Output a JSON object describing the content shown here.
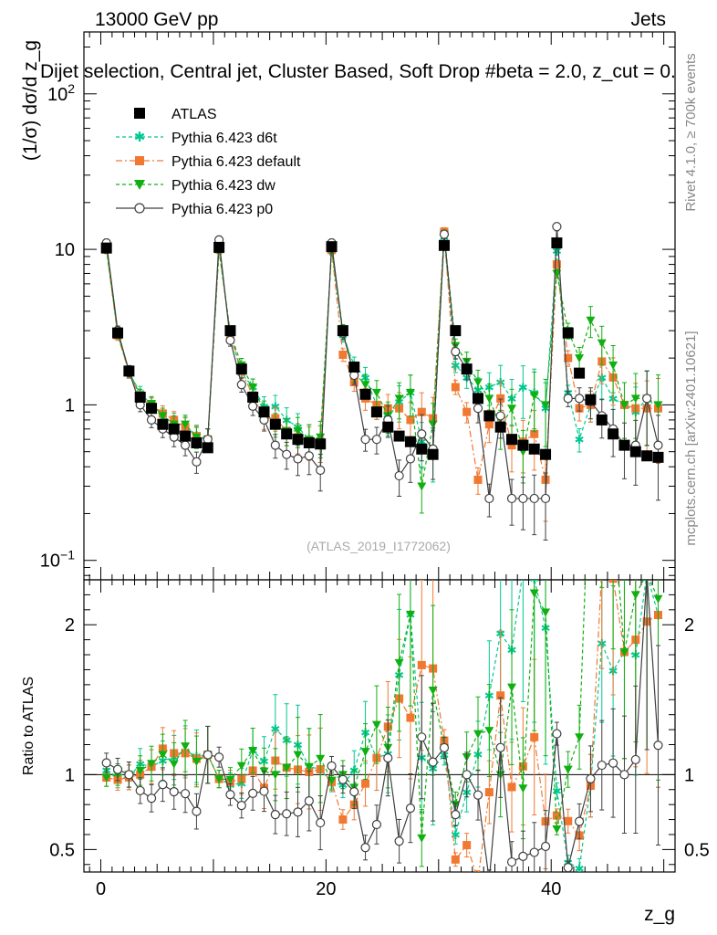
{
  "header": {
    "left": "13000 GeV pp",
    "right": "Jets",
    "selection": "Dijet selection, Central jet, Cluster Based, Soft Drop #beta = 2.0, z_cut = 0.",
    "watermark": "(ATLAS_2019_I1772062)",
    "side_label_top": "Rivet 4.1.0, ≥ 700k events",
    "side_label_bottom": "mcplots.cern.ch [arXiv:2401.10621]"
  },
  "chart_data": {
    "type": "line",
    "xlabel": "z_g",
    "ylabel": "(1/σ) dσ/d z_g",
    "ratio_ylabel": "Ratio to ATLAS",
    "xlim": [
      -1.5,
      51
    ],
    "ylim_log": [
      0.075,
      250
    ],
    "ratio_ylim": [
      0.35,
      2.3
    ],
    "x_ticks": [
      "0",
      "20",
      "40"
    ],
    "y_ticks": [
      "10^-1",
      "1",
      "10",
      "10^2"
    ],
    "ratio_ticks": [
      "0.5",
      "1",
      "2"
    ],
    "legend": [
      "ATLAS",
      "Pythia 6.423 d6t",
      "Pythia 6.423 default",
      "Pythia 6.423 dw",
      "Pythia 6.423 p0"
    ],
    "series": [
      {
        "name": "ATLAS",
        "color": "#000000",
        "marker": "square",
        "x": [
          0.5,
          1.5,
          2.5,
          3.5,
          4.5,
          5.5,
          6.5,
          7.5,
          8.5,
          9.5,
          10.5,
          11.5,
          12.5,
          13.5,
          14.5,
          15.5,
          16.5,
          17.5,
          18.5,
          19.5,
          20.5,
          21.5,
          22.5,
          23.5,
          24.5,
          25.5,
          26.5,
          27.5,
          28.5,
          29.5,
          30.5,
          31.5,
          32.5,
          33.5,
          34.5,
          35.5,
          36.5,
          37.5,
          38.5,
          39.5,
          40.5,
          41.5,
          42.5,
          43.5,
          44.5,
          45.5,
          46.5,
          47.5,
          48.5,
          49.5
        ],
        "values": [
          10.2,
          2.9,
          1.65,
          1.12,
          0.95,
          0.75,
          0.7,
          0.63,
          0.57,
          0.53,
          10.3,
          3.0,
          1.7,
          1.12,
          0.9,
          0.75,
          0.65,
          0.6,
          0.57,
          0.56,
          10.4,
          3.0,
          1.75,
          1.17,
          0.9,
          0.72,
          0.63,
          0.58,
          0.52,
          0.48,
          10.6,
          3.0,
          1.7,
          1.1,
          0.85,
          0.72,
          0.6,
          0.55,
          0.52,
          0.48,
          11.0,
          2.9,
          1.6,
          1.08,
          0.8,
          0.65,
          0.55,
          0.5,
          0.47,
          0.46
        ]
      },
      {
        "name": "Pythia 6.423 d6t",
        "color": "#00c890",
        "marker": "star",
        "values": [
          10.5,
          2.85,
          1.62,
          1.2,
          1.0,
          0.82,
          0.78,
          0.73,
          0.64,
          0.6,
          10.0,
          2.8,
          1.6,
          1.3,
          0.98,
          0.98,
          0.8,
          0.72,
          0.6,
          0.58,
          9.8,
          2.8,
          1.8,
          1.5,
          1.0,
          0.82,
          1.05,
          1.2,
          0.58,
          0.5,
          12.0,
          1.8,
          1.5,
          1.25,
          1.3,
          1.4,
          1.1,
          1.3,
          1.2,
          0.95,
          9.8,
          1.2,
          0.6,
          1.0,
          1.5,
          1.1,
          1.0,
          0.9,
          1.1,
          0.95
        ]
      },
      {
        "name": "Pythia 6.423 default",
        "color": "#f07830",
        "marker": "square",
        "values": [
          10.0,
          2.8,
          1.62,
          1.12,
          1.0,
          0.88,
          0.8,
          0.72,
          0.63,
          0.6,
          10.0,
          2.85,
          1.65,
          1.15,
          0.82,
          0.82,
          0.68,
          0.62,
          0.58,
          0.58,
          9.9,
          2.1,
          1.4,
          1.1,
          1.0,
          0.95,
          0.95,
          0.8,
          0.9,
          0.82,
          13.0,
          1.3,
          0.9,
          0.33,
          0.75,
          1.1,
          0.55,
          0.58,
          0.65,
          0.33,
          8.0,
          2.0,
          0.95,
          1.0,
          1.9,
          1.5,
          1.0,
          0.95,
          0.95,
          0.95
        ]
      },
      {
        "name": "Pythia 6.423 dw",
        "color": "#10b010",
        "marker": "triangle",
        "values": [
          10.0,
          2.9,
          1.65,
          1.15,
          1.02,
          0.85,
          0.75,
          0.75,
          0.62,
          0.6,
          10.0,
          2.9,
          1.8,
          1.3,
          0.92,
          0.75,
          0.68,
          0.68,
          0.6,
          0.62,
          10.0,
          3.0,
          1.6,
          1.35,
          1.2,
          0.85,
          1.1,
          1.2,
          0.3,
          0.75,
          12.5,
          2.4,
          1.9,
          1.4,
          1.1,
          0.72,
          0.95,
          0.5,
          1.15,
          1.0,
          7.0,
          3.0,
          2.0,
          3.5,
          2.5,
          1.8,
          1.0,
          1.1,
          1.1,
          1.0
        ]
      },
      {
        "name": "Pythia 6.423 p0",
        "color": "#404040",
        "marker": "circle",
        "values": [
          11.0,
          3.0,
          1.65,
          1.0,
          0.8,
          0.7,
          0.62,
          0.55,
          0.43,
          0.6,
          11.5,
          2.6,
          1.35,
          0.98,
          0.8,
          0.55,
          0.48,
          0.45,
          0.47,
          0.38,
          11.0,
          2.9,
          1.55,
          0.6,
          0.6,
          0.8,
          0.35,
          0.45,
          0.65,
          0.52,
          12.5,
          2.2,
          1.7,
          0.95,
          0.25,
          0.85,
          0.25,
          0.25,
          0.25,
          0.25,
          14.0,
          1.1,
          1.1,
          1.05,
          0.85,
          0.7,
          0.55,
          0.55,
          1.1,
          0.55
        ]
      }
    ]
  }
}
